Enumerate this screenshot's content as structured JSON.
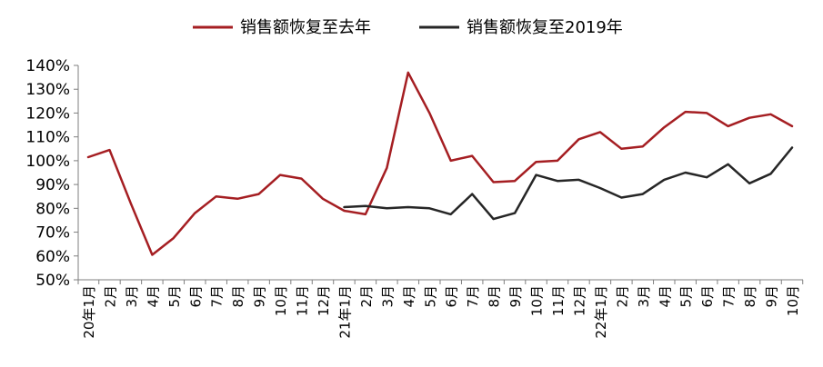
{
  "chart_data": {
    "type": "line",
    "title": "",
    "xlabel": "",
    "ylabel": "",
    "ylim": [
      50,
      140
    ],
    "y_ticks": [
      "50%",
      "60%",
      "70%",
      "80%",
      "90%",
      "100%",
      "110%",
      "120%",
      "130%",
      "140%"
    ],
    "legend_position": "top-center",
    "grid": false,
    "categories": [
      "20年1月",
      "2月",
      "3月",
      "4月",
      "5月",
      "6月",
      "7月",
      "8月",
      "9月",
      "10月",
      "11月",
      "12月",
      "21年1月",
      "2月",
      "3月",
      "4月",
      "5月",
      "6月",
      "7月",
      "8月",
      "9月",
      "10月",
      "11月",
      "12月",
      "22年1月",
      "2月",
      "3月",
      "4月",
      "5月",
      "6月",
      "7月",
      "8月",
      "9月",
      "10月"
    ],
    "series": [
      {
        "name": "销售额恢复至去年",
        "color": "#a51e22",
        "values": [
          101.5,
          104.5,
          82,
          60.5,
          67.5,
          78,
          85,
          84,
          86,
          94,
          92.5,
          84,
          79,
          77.5,
          97,
          137,
          120,
          100,
          102,
          91,
          91.5,
          99.5,
          100,
          109,
          112,
          105,
          106,
          114,
          120.5,
          120,
          114.5,
          118,
          119.5,
          114.5
        ]
      },
      {
        "name": "销售额恢复至2019年",
        "color": "#262626",
        "values": [
          null,
          null,
          null,
          null,
          null,
          null,
          null,
          null,
          null,
          null,
          null,
          null,
          80.5,
          81,
          80,
          80.5,
          80,
          77.5,
          86,
          75.5,
          78,
          94,
          91.5,
          92,
          88.5,
          84.5,
          86,
          92,
          95,
          93,
          98.5,
          90.5,
          94.5,
          105.5
        ]
      }
    ]
  }
}
